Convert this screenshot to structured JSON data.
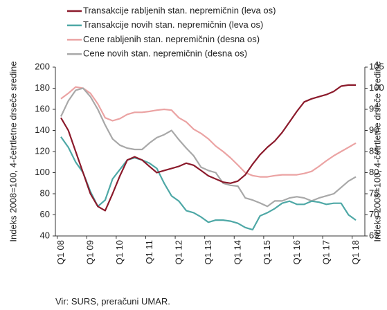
{
  "chart_data": {
    "type": "line",
    "y_label": "Indeks 2008=100, 4-četrtletne drseče sredine",
    "y2_label": "Indeks 2008=100, 4-četrtletne drseče sredine",
    "source": "Vir: SURS, preračuni UMAR.",
    "categories": [
      "Q1 08",
      null,
      null,
      null,
      "Q1 09",
      null,
      null,
      null,
      "Q1 10",
      null,
      null,
      null,
      "Q1 11",
      null,
      null,
      null,
      "Q1 12",
      null,
      null,
      null,
      "Q1 13",
      null,
      null,
      null,
      "Q1 14",
      null,
      null,
      null,
      "Q1 15",
      null,
      null,
      null,
      "Q1 16",
      null,
      null,
      null,
      "Q1 17",
      null,
      null,
      null,
      "Q1 18"
    ],
    "ylim": [
      40,
      200
    ],
    "yticks": [
      40,
      60,
      80,
      100,
      120,
      140,
      160,
      180,
      200
    ],
    "y2lim": [
      65,
      105
    ],
    "y2ticks": [
      65,
      70,
      75,
      80,
      85,
      90,
      95,
      100,
      105
    ],
    "series": [
      {
        "name": "Transakcije rabljenih stan. nepremičnin (leva os)",
        "color": "#8b1a2b",
        "values": [
          152,
          140,
          120,
          100,
          80,
          68,
          64,
          80,
          97,
          112,
          115,
          112,
          106,
          100,
          102,
          104,
          106,
          109,
          107,
          102,
          97,
          94,
          91,
          90,
          92,
          98,
          108,
          117,
          124,
          130,
          138,
          148,
          158,
          167,
          170,
          172,
          174,
          177,
          182,
          183,
          183
        ]
      },
      {
        "name": "Transakcije novih stan. nepremičnin (leva os)",
        "color": "#4ea8a6",
        "values": [
          134,
          124,
          110,
          100,
          82,
          68,
          74,
          94,
          103,
          112,
          114,
          112,
          109,
          104,
          90,
          78,
          73,
          64,
          62,
          58,
          53,
          55,
          55,
          54,
          52,
          48,
          46,
          59,
          62,
          66,
          71,
          73,
          70,
          70,
          73,
          72,
          70,
          71,
          71,
          60,
          55
        ]
      },
      {
        "name": "Cene rabljenih stan. nepremičnin (desna os)",
        "color": "#eba3a3",
        "axis": "y2",
        "values": [
          97.5,
          98.8,
          100.3,
          100,
          98.8,
          96.3,
          93,
          92.3,
          92.8,
          93.8,
          94.3,
          94.3,
          94.5,
          94.8,
          95,
          94.8,
          93,
          92,
          90.3,
          89.3,
          88,
          86.3,
          85,
          83.5,
          81.8,
          80,
          79.3,
          79,
          79,
          79.3,
          79.5,
          79.5,
          79.5,
          79.8,
          80.3,
          81.5,
          82.8,
          84,
          85,
          86,
          87
        ]
      },
      {
        "name": "Cene novih stan. nepremičnin (desna os)",
        "color": "#a8a8a8",
        "axis": "y2",
        "values": [
          93.3,
          97,
          99.5,
          100,
          98,
          95,
          91.3,
          88,
          86.5,
          85.8,
          85.5,
          85.5,
          87,
          88.3,
          89,
          90,
          87.8,
          85.8,
          84,
          81.3,
          80.5,
          80,
          77.5,
          77,
          76.8,
          74,
          73.5,
          72.8,
          72,
          73.3,
          73.3,
          74,
          74.3,
          74,
          73.3,
          74,
          74.5,
          75,
          76.5,
          78,
          79
        ]
      }
    ]
  }
}
